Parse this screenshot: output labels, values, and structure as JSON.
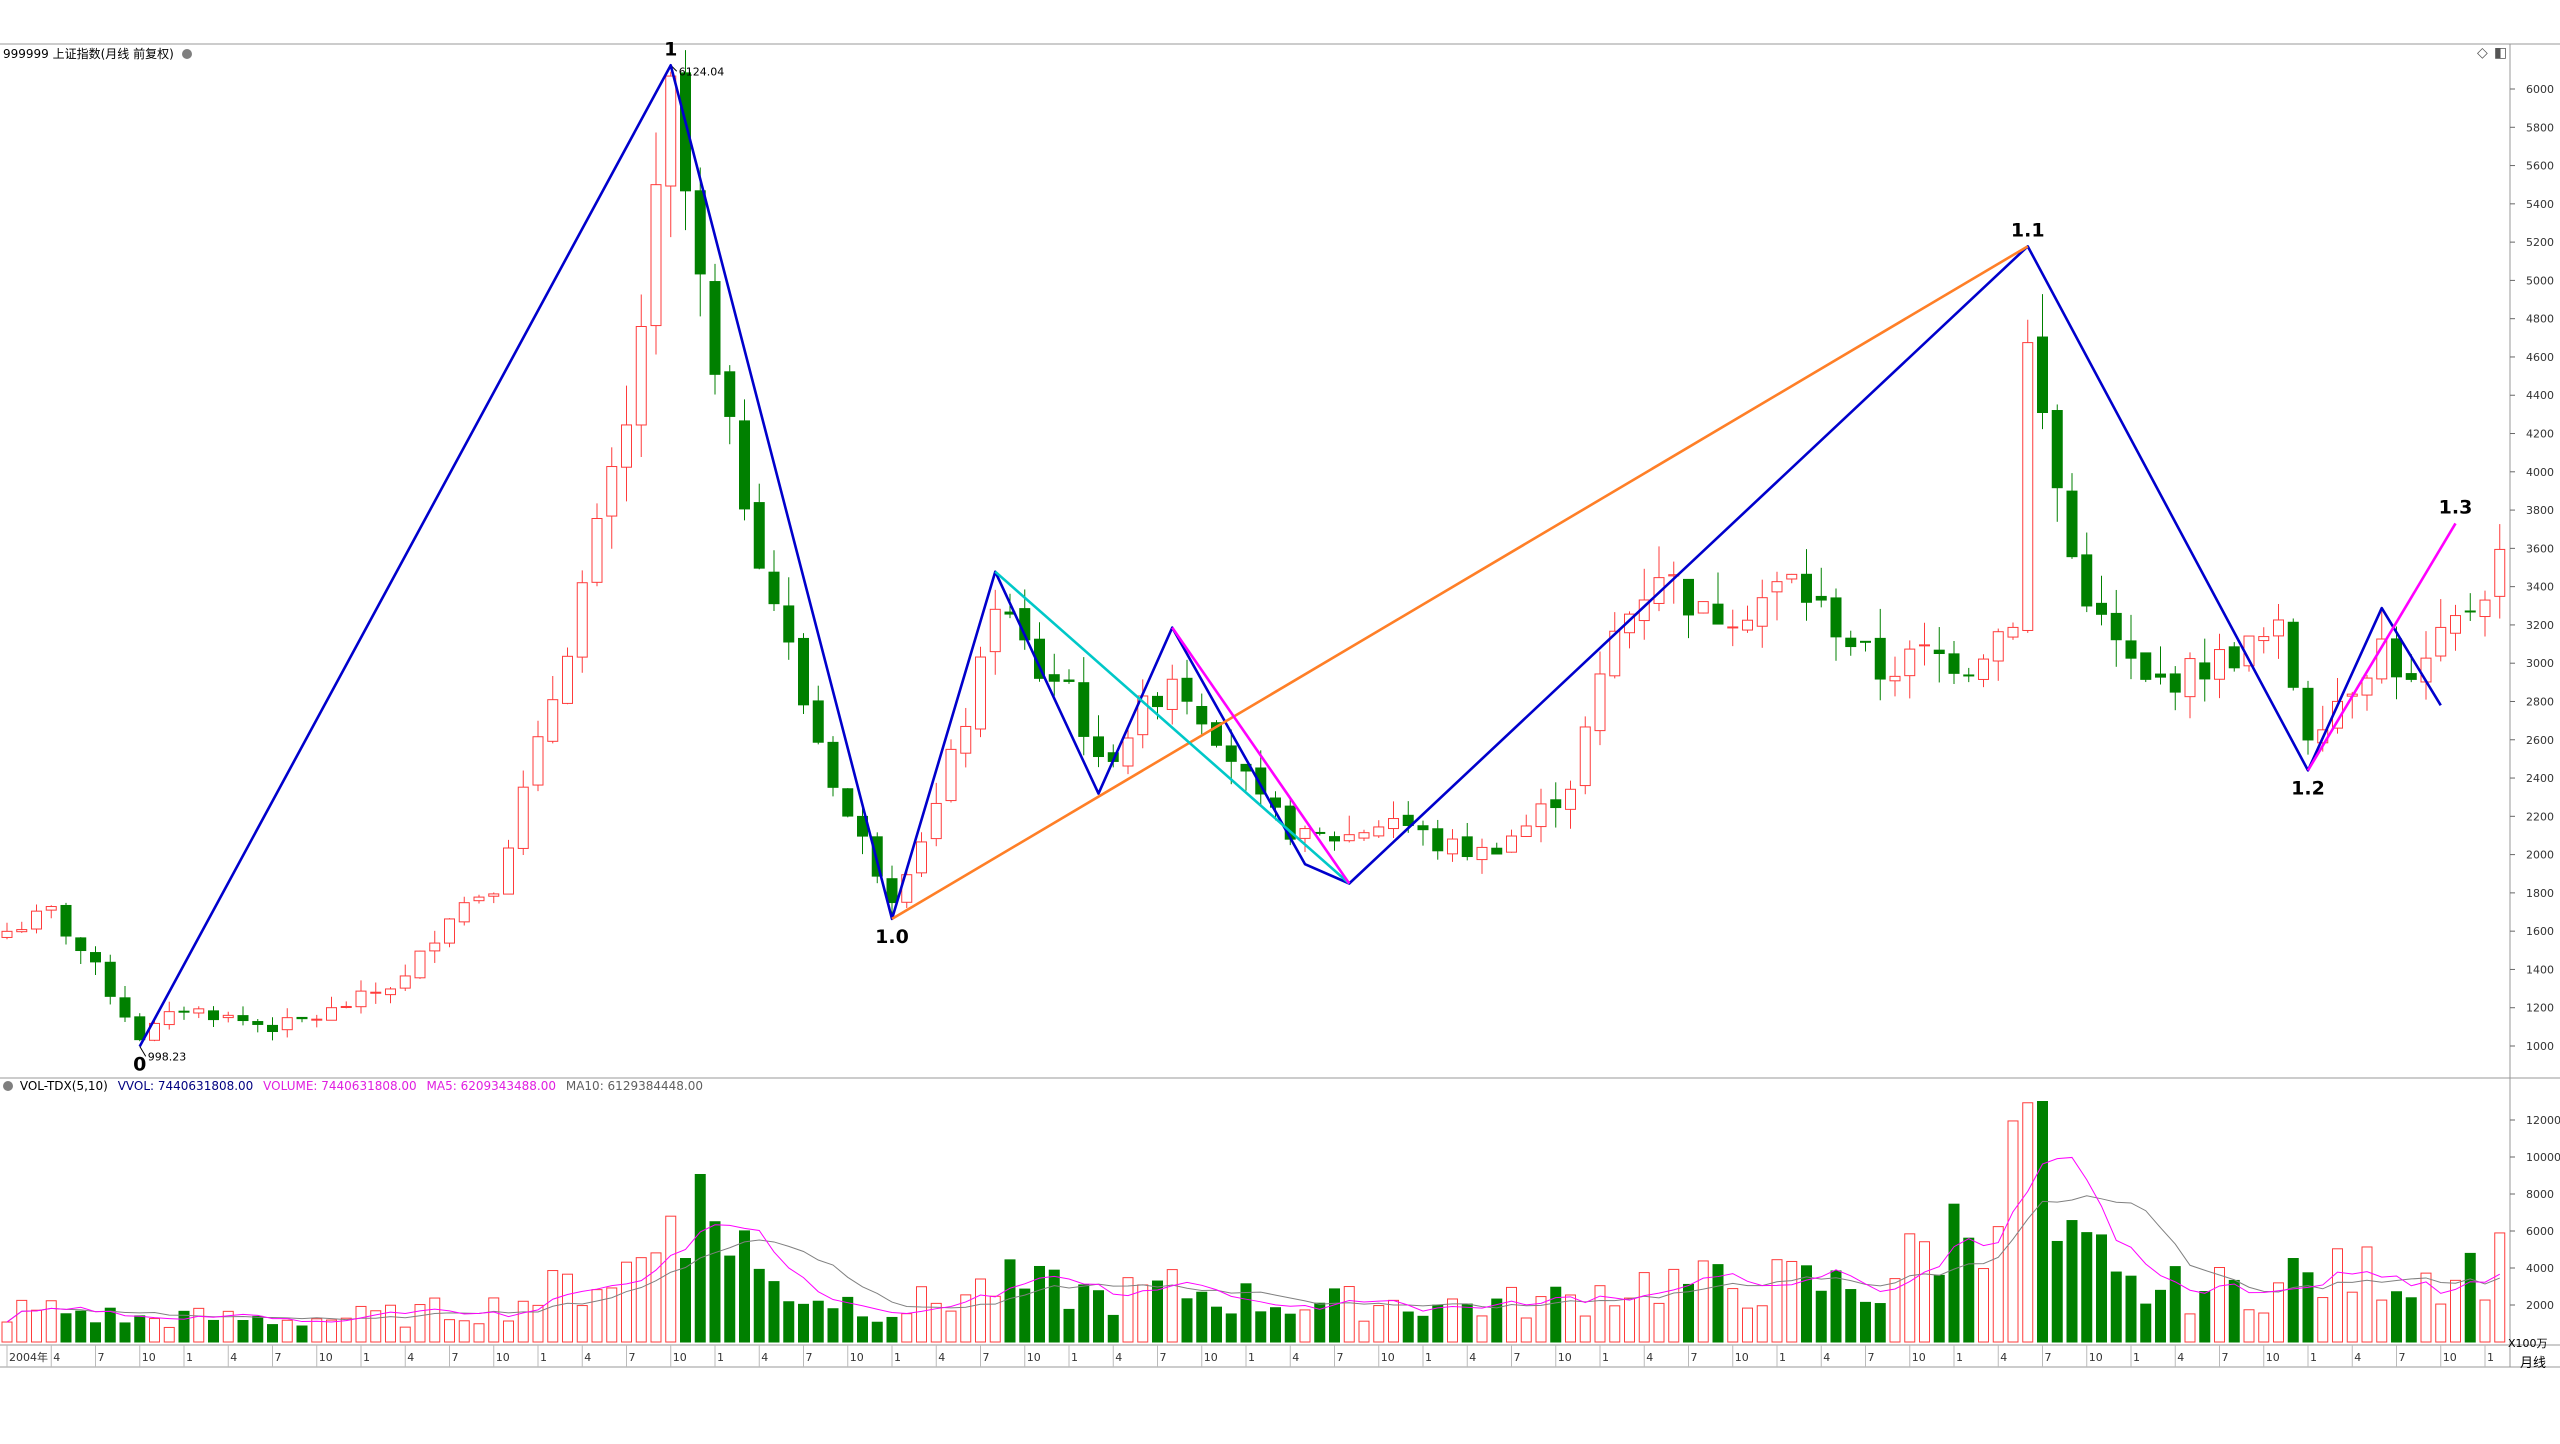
{
  "main_header": {
    "symbol_title": "999999 上证指数(月线 前复权)",
    "restore_icon": "diamond-icon",
    "window_icon": "window-icon"
  },
  "volume_header": {
    "label": "VOL-TDX(5,10)",
    "vvol": "VVOL: 7440631808.00",
    "volume": "VOLUME: 7440631808.00",
    "ma5": "MA5: 6209343488.00",
    "ma10": "MA10: 6129384448.00",
    "unit": "X100万"
  },
  "period_label": "月线",
  "colors": {
    "up": "#ff3b3b",
    "down": "#008000",
    "wave_main": "#0000cc",
    "wave_orange": "#ff7f27",
    "wave_cyan": "#00c8c8",
    "wave_magenta": "#ff00ff",
    "ma5": "#ff00ff",
    "ma10": "#808080",
    "vvol_text": "#000080",
    "grid": "#c8c8c8"
  },
  "chart_data": [
    {
      "type": "candlestick",
      "title": "999999 上证指数(月线 前复权)",
      "ylim": [
        900,
        6300
      ],
      "y_ticks": [
        1000,
        1200,
        1400,
        1600,
        1800,
        2000,
        2200,
        2400,
        2600,
        2800,
        3000,
        3200,
        3400,
        3600,
        3800,
        4000,
        4200,
        4400,
        4600,
        4800,
        5000,
        5200,
        5400,
        5600,
        5800,
        6000
      ],
      "x_start": "2004-01",
      "x_end": "2018-02",
      "x_tick_labels": [
        {
          "idx": 0,
          "label": "2004年"
        },
        {
          "idx": 3,
          "label": "4"
        },
        {
          "idx": 6,
          "label": "7"
        },
        {
          "idx": 9,
          "label": "10"
        },
        {
          "idx": 12,
          "label": "1"
        },
        {
          "idx": 15,
          "label": "4"
        },
        {
          "idx": 18,
          "label": "7"
        },
        {
          "idx": 21,
          "label": "10"
        },
        {
          "idx": 24,
          "label": "1"
        },
        {
          "idx": 27,
          "label": "4"
        },
        {
          "idx": 30,
          "label": "7"
        },
        {
          "idx": 33,
          "label": "10"
        },
        {
          "idx": 36,
          "label": "1"
        },
        {
          "idx": 39,
          "label": "4"
        },
        {
          "idx": 42,
          "label": "7"
        },
        {
          "idx": 45,
          "label": "10"
        },
        {
          "idx": 48,
          "label": "1"
        },
        {
          "idx": 51,
          "label": "4"
        },
        {
          "idx": 54,
          "label": "7"
        },
        {
          "idx": 57,
          "label": "10"
        },
        {
          "idx": 60,
          "label": "1"
        },
        {
          "idx": 63,
          "label": "4"
        },
        {
          "idx": 66,
          "label": "7"
        },
        {
          "idx": 69,
          "label": "10"
        },
        {
          "idx": 72,
          "label": "1"
        },
        {
          "idx": 75,
          "label": "4"
        },
        {
          "idx": 78,
          "label": "7"
        },
        {
          "idx": 81,
          "label": "10"
        },
        {
          "idx": 84,
          "label": "1"
        },
        {
          "idx": 87,
          "label": "4"
        },
        {
          "idx": 90,
          "label": "7"
        },
        {
          "idx": 93,
          "label": "10"
        },
        {
          "idx": 96,
          "label": "1"
        },
        {
          "idx": 99,
          "label": "4"
        },
        {
          "idx": 102,
          "label": "7"
        },
        {
          "idx": 105,
          "label": "10"
        },
        {
          "idx": 108,
          "label": "1"
        },
        {
          "idx": 111,
          "label": "4"
        },
        {
          "idx": 114,
          "label": "7"
        },
        {
          "idx": 117,
          "label": "10"
        },
        {
          "idx": 120,
          "label": "1"
        },
        {
          "idx": 123,
          "label": "4"
        },
        {
          "idx": 126,
          "label": "7"
        },
        {
          "idx": 129,
          "label": "10"
        },
        {
          "idx": 132,
          "label": "1"
        },
        {
          "idx": 135,
          "label": "4"
        },
        {
          "idx": 138,
          "label": "7"
        },
        {
          "idx": 141,
          "label": "10"
        },
        {
          "idx": 144,
          "label": "1"
        },
        {
          "idx": 147,
          "label": "4"
        },
        {
          "idx": 150,
          "label": "7"
        },
        {
          "idx": 153,
          "label": "10"
        },
        {
          "idx": 156,
          "label": "1"
        },
        {
          "idx": 159,
          "label": "4"
        },
        {
          "idx": 162,
          "label": "7"
        },
        {
          "idx": 165,
          "label": "10"
        },
        {
          "idx": 168,
          "label": "1"
        }
      ],
      "price_labels": [
        {
          "idx": 45,
          "value": 6124.04,
          "label": "6124.04",
          "side": "high"
        },
        {
          "idx": 9,
          "value": 998.23,
          "label": "998.23",
          "side": "low"
        }
      ],
      "wave_labels": [
        {
          "idx": 9,
          "value": 998,
          "label": "0",
          "side": "below"
        },
        {
          "idx": 45,
          "value": 6124,
          "label": "1",
          "side": "above"
        },
        {
          "idx": 60,
          "value": 1664,
          "label": "1.0",
          "side": "below"
        },
        {
          "idx": 137,
          "value": 5178,
          "label": "1.1",
          "side": "above"
        },
        {
          "idx": 156,
          "value": 2440,
          "label": "1.2",
          "side": "below"
        },
        {
          "idx": 166,
          "value": 3730,
          "label": "1.3",
          "side": "above"
        }
      ],
      "wave_lines": [
        {
          "name": "main",
          "color": "#0000cc",
          "points": [
            [
              9,
              998
            ],
            [
              45,
              6124
            ],
            [
              60,
              1664
            ],
            [
              67,
              3478
            ],
            [
              74,
              2319
            ],
            [
              79,
              3186
            ],
            [
              88,
              1950
            ],
            [
              91,
              1849
            ],
            [
              137,
              5178
            ],
            [
              156,
              2440
            ],
            [
              161,
              3288
            ],
            [
              165,
              2780
            ]
          ]
        },
        {
          "name": "orange",
          "color": "#ff7f27",
          "points": [
            [
              60,
              1664
            ],
            [
              137,
              5178
            ]
          ]
        },
        {
          "name": "cyan",
          "color": "#00c8c8",
          "points": [
            [
              67,
              3478
            ],
            [
              91,
              1849
            ]
          ]
        },
        {
          "name": "magenta-1",
          "color": "#ff00ff",
          "points": [
            [
              79,
              3186
            ],
            [
              91,
              1849
            ]
          ]
        },
        {
          "name": "magenta-2",
          "color": "#ff00ff",
          "points": [
            [
              156,
              2440
            ],
            [
              166,
              3730
            ]
          ]
        }
      ]
    },
    {
      "type": "bar",
      "title": "VOL-TDX(5,10)",
      "unit": "X100万",
      "ylim": [
        0,
        13500
      ],
      "y_ticks": [
        2000,
        4000,
        6000,
        8000,
        10000,
        12000
      ],
      "series": [
        {
          "name": "VOLUME"
        },
        {
          "name": "MA5"
        },
        {
          "name": "MA10"
        }
      ],
      "last_values": {
        "VVOL": 7440631808.0,
        "VOLUME": 7440631808.0,
        "MA5": 6209343488.0,
        "MA10": 6129384448.0
      }
    }
  ]
}
